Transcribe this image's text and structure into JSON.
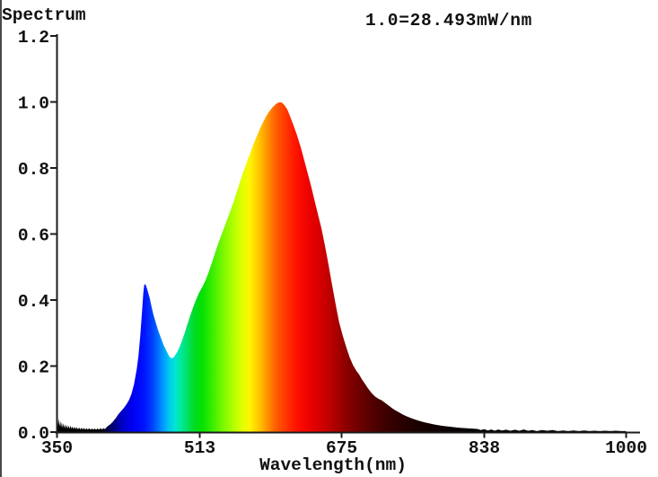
{
  "chart_data": {
    "type": "area",
    "title": "Spectrum",
    "scale_annotation": "1.0=28.493mW/nm",
    "xlabel": "Wavelength(nm)",
    "xlim": [
      350,
      1000
    ],
    "ylim": [
      0.0,
      1.2
    ],
    "x_ticks": [
      350,
      513,
      675,
      838,
      1000
    ],
    "y_tick_labels": [
      "0.0",
      "0.2",
      "0.4",
      "0.6",
      "0.8",
      "1.0",
      "1.2"
    ],
    "y_tick_values": [
      0.0,
      0.2,
      0.4,
      0.6,
      0.8,
      1.0,
      1.2
    ],
    "grid": false,
    "legend": "none",
    "fill": "wavelength-rainbow-gradient",
    "points": [
      [
        350,
        0.012
      ],
      [
        350.7,
        0.05
      ],
      [
        351.4,
        0.02
      ],
      [
        352.2,
        0.042
      ],
      [
        353,
        0.016
      ],
      [
        353.8,
        0.034
      ],
      [
        354.6,
        0.015
      ],
      [
        355.5,
        0.03
      ],
      [
        356.4,
        0.013
      ],
      [
        357.3,
        0.027
      ],
      [
        358.2,
        0.012
      ],
      [
        359.2,
        0.024
      ],
      [
        360.2,
        0.011
      ],
      [
        361.2,
        0.022
      ],
      [
        362.2,
        0.011
      ],
      [
        363.3,
        0.02
      ],
      [
        364.4,
        0.01
      ],
      [
        365.5,
        0.019
      ],
      [
        366.6,
        0.01
      ],
      [
        367.8,
        0.017
      ],
      [
        369,
        0.009
      ],
      [
        370.2,
        0.016
      ],
      [
        371.4,
        0.009
      ],
      [
        372.7,
        0.015
      ],
      [
        374,
        0.008
      ],
      [
        375.3,
        0.014
      ],
      [
        376.6,
        0.008
      ],
      [
        378,
        0.013
      ],
      [
        379.4,
        0.008
      ],
      [
        380.8,
        0.013
      ],
      [
        382.2,
        0.007
      ],
      [
        383.7,
        0.012
      ],
      [
        385.2,
        0.007
      ],
      [
        386.7,
        0.012
      ],
      [
        388.2,
        0.007
      ],
      [
        389.8,
        0.011
      ],
      [
        391.4,
        0.007
      ],
      [
        393,
        0.011
      ],
      [
        394.6,
        0.007
      ],
      [
        396.3,
        0.011
      ],
      [
        398,
        0.007
      ],
      [
        399.7,
        0.012
      ],
      [
        401.4,
        0.008
      ],
      [
        403.1,
        0.012
      ],
      [
        404.8,
        0.009
      ],
      [
        406,
        0.013
      ],
      [
        408,
        0.018
      ],
      [
        411,
        0.024
      ],
      [
        414,
        0.032
      ],
      [
        417,
        0.042
      ],
      [
        420,
        0.054
      ],
      [
        423,
        0.063
      ],
      [
        426,
        0.072
      ],
      [
        429,
        0.083
      ],
      [
        432,
        0.096
      ],
      [
        435,
        0.115
      ],
      [
        438,
        0.145
      ],
      [
        441,
        0.19
      ],
      [
        443,
        0.23
      ],
      [
        445,
        0.29
      ],
      [
        447,
        0.36
      ],
      [
        448.5,
        0.42
      ],
      [
        449.5,
        0.445
      ],
      [
        450.5,
        0.449
      ],
      [
        451.5,
        0.445
      ],
      [
        452.5,
        0.437
      ],
      [
        454,
        0.424
      ],
      [
        456,
        0.405
      ],
      [
        458,
        0.38
      ],
      [
        460,
        0.357
      ],
      [
        463,
        0.33
      ],
      [
        466,
        0.305
      ],
      [
        469,
        0.283
      ],
      [
        472,
        0.262
      ],
      [
        475,
        0.246
      ],
      [
        478,
        0.231
      ],
      [
        480,
        0.2245
      ],
      [
        482,
        0.224
      ],
      [
        484,
        0.229
      ],
      [
        487,
        0.241
      ],
      [
        490,
        0.258
      ],
      [
        493,
        0.279
      ],
      [
        496,
        0.302
      ],
      [
        499,
        0.327
      ],
      [
        502,
        0.352
      ],
      [
        505,
        0.375
      ],
      [
        508,
        0.396
      ],
      [
        512,
        0.421
      ],
      [
        516,
        0.44
      ],
      [
        520,
        0.462
      ],
      [
        524,
        0.49
      ],
      [
        528,
        0.522
      ],
      [
        532,
        0.555
      ],
      [
        536,
        0.585
      ],
      [
        540,
        0.613
      ],
      [
        544,
        0.642
      ],
      [
        548,
        0.67
      ],
      [
        552,
        0.7
      ],
      [
        556,
        0.733
      ],
      [
        560,
        0.767
      ],
      [
        564,
        0.797
      ],
      [
        568,
        0.827
      ],
      [
        572,
        0.855
      ],
      [
        576,
        0.883
      ],
      [
        580,
        0.908
      ],
      [
        584,
        0.932
      ],
      [
        588,
        0.953
      ],
      [
        592,
        0.97
      ],
      [
        596,
        0.984
      ],
      [
        600,
        0.994
      ],
      [
        603,
        0.999
      ],
      [
        605,
        1.0
      ],
      [
        607,
        0.998
      ],
      [
        610,
        0.99
      ],
      [
        613,
        0.978
      ],
      [
        616,
        0.958
      ],
      [
        620,
        0.93
      ],
      [
        624,
        0.9
      ],
      [
        628,
        0.866
      ],
      [
        632,
        0.827
      ],
      [
        636,
        0.787
      ],
      [
        640,
        0.747
      ],
      [
        644,
        0.703
      ],
      [
        648,
        0.66
      ],
      [
        652,
        0.617
      ],
      [
        656,
        0.565
      ],
      [
        660,
        0.508
      ],
      [
        664,
        0.448
      ],
      [
        668,
        0.39
      ],
      [
        672,
        0.335
      ],
      [
        676,
        0.295
      ],
      [
        680,
        0.26
      ],
      [
        684,
        0.228
      ],
      [
        688,
        0.203
      ],
      [
        692,
        0.185
      ],
      [
        695,
        0.175
      ],
      [
        698,
        0.161
      ],
      [
        701,
        0.149
      ],
      [
        705,
        0.133
      ],
      [
        709,
        0.119
      ],
      [
        713,
        0.108
      ],
      [
        717,
        0.101
      ],
      [
        721,
        0.096
      ],
      [
        725,
        0.088
      ],
      [
        729,
        0.08
      ],
      [
        733,
        0.072
      ],
      [
        737,
        0.065
      ],
      [
        741,
        0.059
      ],
      [
        745,
        0.053
      ],
      [
        750,
        0.047
      ],
      [
        755,
        0.042
      ],
      [
        760,
        0.037
      ],
      [
        765,
        0.033
      ],
      [
        770,
        0.0295
      ],
      [
        775,
        0.0265
      ],
      [
        780,
        0.0235
      ],
      [
        785,
        0.021
      ],
      [
        790,
        0.019
      ],
      [
        795,
        0.0175
      ],
      [
        800,
        0.016
      ],
      [
        806,
        0.014
      ],
      [
        812,
        0.0125
      ],
      [
        818,
        0.0115
      ],
      [
        824,
        0.0105
      ],
      [
        830,
        0.0095
      ],
      [
        834,
        0.006
      ],
      [
        838,
        0.009
      ],
      [
        842,
        0.005
      ],
      [
        846,
        0.008
      ],
      [
        850,
        0.004
      ],
      [
        854,
        0.008
      ],
      [
        858,
        0.005
      ],
      [
        863,
        0.007
      ],
      [
        868,
        0.004
      ],
      [
        873,
        0.007
      ],
      [
        878,
        0.004
      ],
      [
        883,
        0.008
      ],
      [
        888,
        0.004
      ],
      [
        893,
        0.006
      ],
      [
        898,
        0.003
      ],
      [
        904,
        0.006
      ],
      [
        910,
        0.004
      ],
      [
        916,
        0.006
      ],
      [
        922,
        0.003
      ],
      [
        928,
        0.005
      ],
      [
        934,
        0.003
      ],
      [
        940,
        0.005
      ],
      [
        946,
        0.003
      ],
      [
        952,
        0.005
      ],
      [
        958,
        0.003
      ],
      [
        964,
        0.004
      ],
      [
        970,
        0.003
      ],
      [
        976,
        0.004
      ],
      [
        982,
        0.003
      ],
      [
        988,
        0.004
      ],
      [
        994,
        0.003
      ],
      [
        1000,
        0.003
      ]
    ],
    "gradient_stops": [
      [
        350,
        "#000000"
      ],
      [
        400,
        "#000005"
      ],
      [
        412,
        "#00006a"
      ],
      [
        425,
        "#0000c8"
      ],
      [
        437,
        "#0000f5"
      ],
      [
        450,
        "#0014ff"
      ],
      [
        460,
        "#0048ff"
      ],
      [
        470,
        "#0090ff"
      ],
      [
        478,
        "#00c8f0"
      ],
      [
        485,
        "#00e6d2"
      ],
      [
        492,
        "#00e89a"
      ],
      [
        500,
        "#00e05a"
      ],
      [
        508,
        "#00dc1e"
      ],
      [
        516,
        "#05e100"
      ],
      [
        528,
        "#3cee00"
      ],
      [
        540,
        "#7cf800"
      ],
      [
        552,
        "#b4ff00"
      ],
      [
        562,
        "#e2ff00"
      ],
      [
        570,
        "#fff600"
      ],
      [
        578,
        "#ffd200"
      ],
      [
        586,
        "#ffaa00"
      ],
      [
        594,
        "#ff7e00"
      ],
      [
        602,
        "#ff5500"
      ],
      [
        610,
        "#ff3c00"
      ],
      [
        618,
        "#ff2000"
      ],
      [
        628,
        "#fa0a00"
      ],
      [
        640,
        "#e80000"
      ],
      [
        652,
        "#d20000"
      ],
      [
        665,
        "#b40000"
      ],
      [
        680,
        "#8c0000"
      ],
      [
        695,
        "#6e0000"
      ],
      [
        712,
        "#500000"
      ],
      [
        730,
        "#380000"
      ],
      [
        750,
        "#240000"
      ],
      [
        775,
        "#120000"
      ],
      [
        800,
        "#080000"
      ],
      [
        840,
        "#020000"
      ],
      [
        1000,
        "#000000"
      ]
    ]
  },
  "colors": {
    "background": "#ffffff",
    "axis": "#1c1c1c",
    "text": "#111111",
    "left_border": "#4a4a4a"
  }
}
